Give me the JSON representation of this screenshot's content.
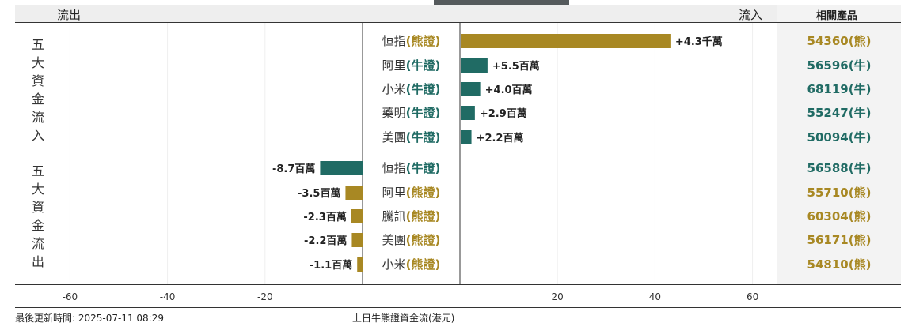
{
  "header": {
    "outflow": "流出",
    "inflow": "流入",
    "product": "相關產品"
  },
  "groups": {
    "inflow_title": "五大資金流入",
    "outflow_title": "五大資金流出"
  },
  "footer": {
    "updated": "最後更新時間: 2025-07-11 08:29",
    "caption": "上日牛熊證資金流(港元)"
  },
  "colors": {
    "bull": "#206b64",
    "bear": "#a88823",
    "bull_text": "#206b64",
    "bear_text": "#a88823"
  },
  "chart_data": {
    "type": "bar",
    "orientation": "horizontal",
    "unit": "百萬港元",
    "x_ticks": [
      -60,
      -40,
      -20,
      20,
      40,
      60
    ],
    "xlim": [
      -60,
      60
    ],
    "grid": true,
    "rows": [
      {
        "group": "inflow",
        "name": "恒指",
        "kind": "(熊證)",
        "type": "bear",
        "value": 43,
        "label": "+4.3千萬",
        "product": "54360(熊)"
      },
      {
        "group": "inflow",
        "name": "阿里",
        "kind": "(牛證)",
        "type": "bull",
        "value": 5.5,
        "label": "+5.5百萬",
        "product": "56596(牛)"
      },
      {
        "group": "inflow",
        "name": "小米",
        "kind": "(牛證)",
        "type": "bull",
        "value": 4.0,
        "label": "+4.0百萬",
        "product": "68119(牛)"
      },
      {
        "group": "inflow",
        "name": "藥明",
        "kind": "(牛證)",
        "type": "bull",
        "value": 2.9,
        "label": "+2.9百萬",
        "product": "55247(牛)"
      },
      {
        "group": "inflow",
        "name": "美團",
        "kind": "(牛證)",
        "type": "bull",
        "value": 2.2,
        "label": "+2.2百萬",
        "product": "50094(牛)"
      },
      {
        "group": "outflow",
        "name": "恒指",
        "kind": "(牛證)",
        "type": "bull",
        "value": -8.7,
        "label": "-8.7百萬",
        "product": "56588(牛)"
      },
      {
        "group": "outflow",
        "name": "阿里",
        "kind": "(熊證)",
        "type": "bear",
        "value": -3.5,
        "label": "-3.5百萬",
        "product": "55710(熊)"
      },
      {
        "group": "outflow",
        "name": "騰訊",
        "kind": "(熊證)",
        "type": "bear",
        "value": -2.3,
        "label": "-2.3百萬",
        "product": "60304(熊)"
      },
      {
        "group": "outflow",
        "name": "美團",
        "kind": "(熊證)",
        "type": "bear",
        "value": -2.2,
        "label": "-2.2百萬",
        "product": "56171(熊)"
      },
      {
        "group": "outflow",
        "name": "小米",
        "kind": "(熊證)",
        "type": "bear",
        "value": -1.1,
        "label": "-1.1百萬",
        "product": "54810(熊)"
      }
    ]
  }
}
